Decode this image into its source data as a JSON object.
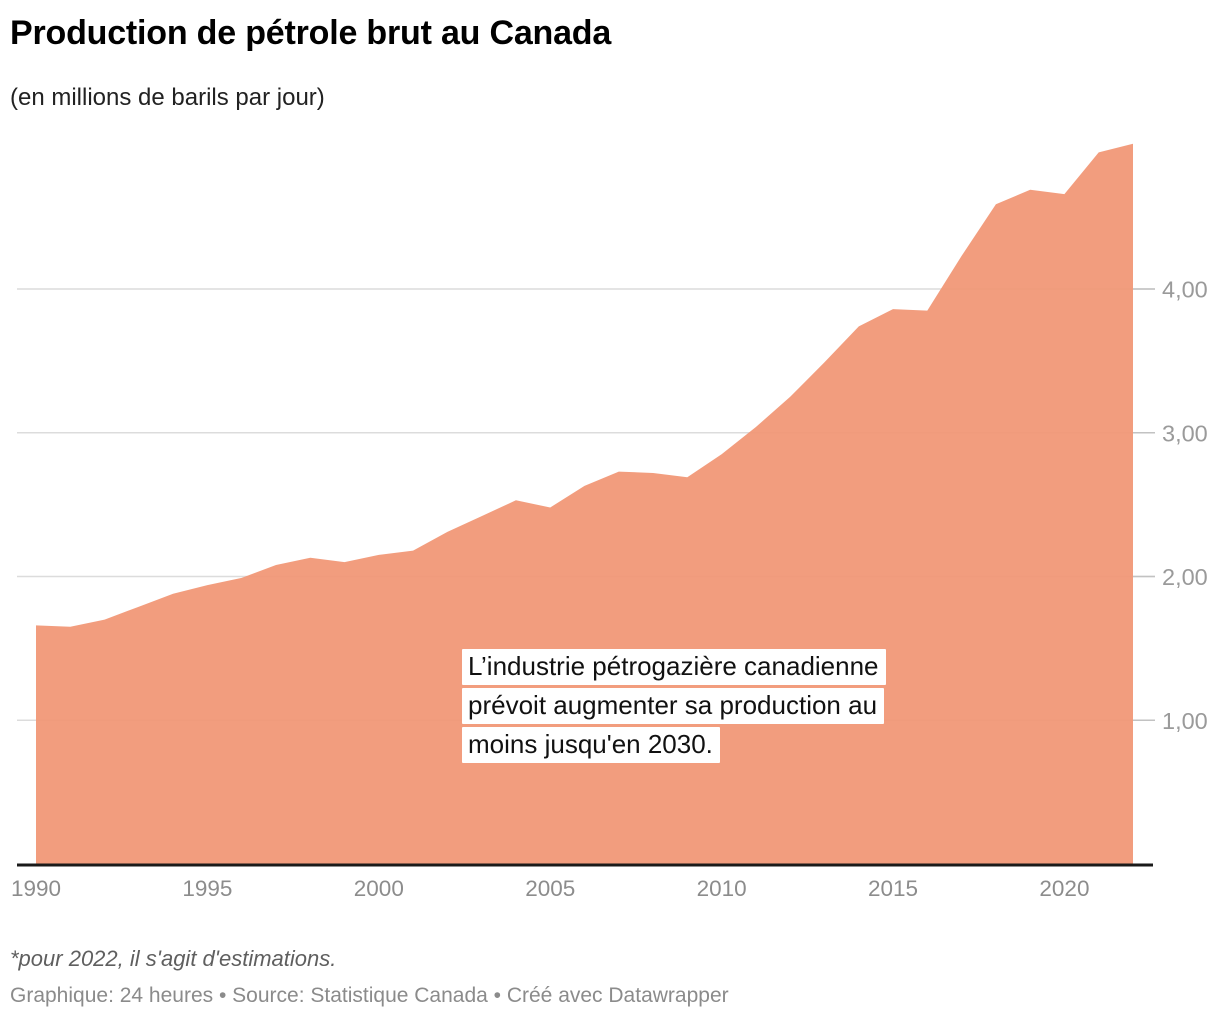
{
  "header": {
    "title": "Production de pétrole brut au Canada",
    "subtitle": "(en millions de barils par jour)"
  },
  "annotation": {
    "lines": [
      "L’industrie pétrogazière canadienne",
      "prévoit augmenter sa production au",
      "moins jusqu'en 2030."
    ]
  },
  "footer": {
    "footnote": "*pour 2022, il s'agit d'estimations.",
    "byline": "Graphique: 24 heures • Source: Statistique Canada • Créé avec Datawrapper"
  },
  "chart_data": {
    "type": "area",
    "title": "Production de pétrole brut au Canada",
    "subtitle": "(en millions de barils par jour)",
    "x": [
      1990,
      1991,
      1992,
      1993,
      1994,
      1995,
      1996,
      1997,
      1998,
      1999,
      2000,
      2001,
      2002,
      2003,
      2004,
      2005,
      2006,
      2007,
      2008,
      2009,
      2010,
      2011,
      2012,
      2013,
      2014,
      2015,
      2016,
      2017,
      2018,
      2019,
      2020,
      2021,
      2022
    ],
    "values": [
      1.66,
      1.65,
      1.7,
      1.79,
      1.88,
      1.94,
      1.99,
      2.08,
      2.13,
      2.1,
      2.15,
      2.18,
      2.31,
      2.42,
      2.53,
      2.48,
      2.63,
      2.73,
      2.72,
      2.69,
      2.85,
      3.04,
      3.25,
      3.49,
      3.74,
      3.86,
      3.85,
      4.23,
      4.59,
      4.69,
      4.66,
      4.95,
      5.01
    ],
    "xlabel": "",
    "ylabel": "",
    "ylim": [
      0,
      5.05
    ],
    "grid": "horizontal",
    "legend": "none",
    "yticks": [
      {
        "value": 1,
        "label": "1,00"
      },
      {
        "value": 2,
        "label": "2,00"
      },
      {
        "value": 3,
        "label": "3,00"
      },
      {
        "value": 4,
        "label": "4,00"
      }
    ],
    "xticks": [
      {
        "value": 1990,
        "label": "1990"
      },
      {
        "value": 1995,
        "label": "1995"
      },
      {
        "value": 2000,
        "label": "2000"
      },
      {
        "value": 2005,
        "label": "2005"
      },
      {
        "value": 2010,
        "label": "2010"
      },
      {
        "value": 2015,
        "label": "2015"
      },
      {
        "value": 2020,
        "label": "2020"
      }
    ],
    "colors": {
      "area": "#f19674",
      "axis": "#1a1a1a",
      "grid": "#dcdcdc",
      "tick": "#c2c2c2",
      "y_label": "#9a9a9a",
      "x_label": "#8c8c8c"
    }
  }
}
